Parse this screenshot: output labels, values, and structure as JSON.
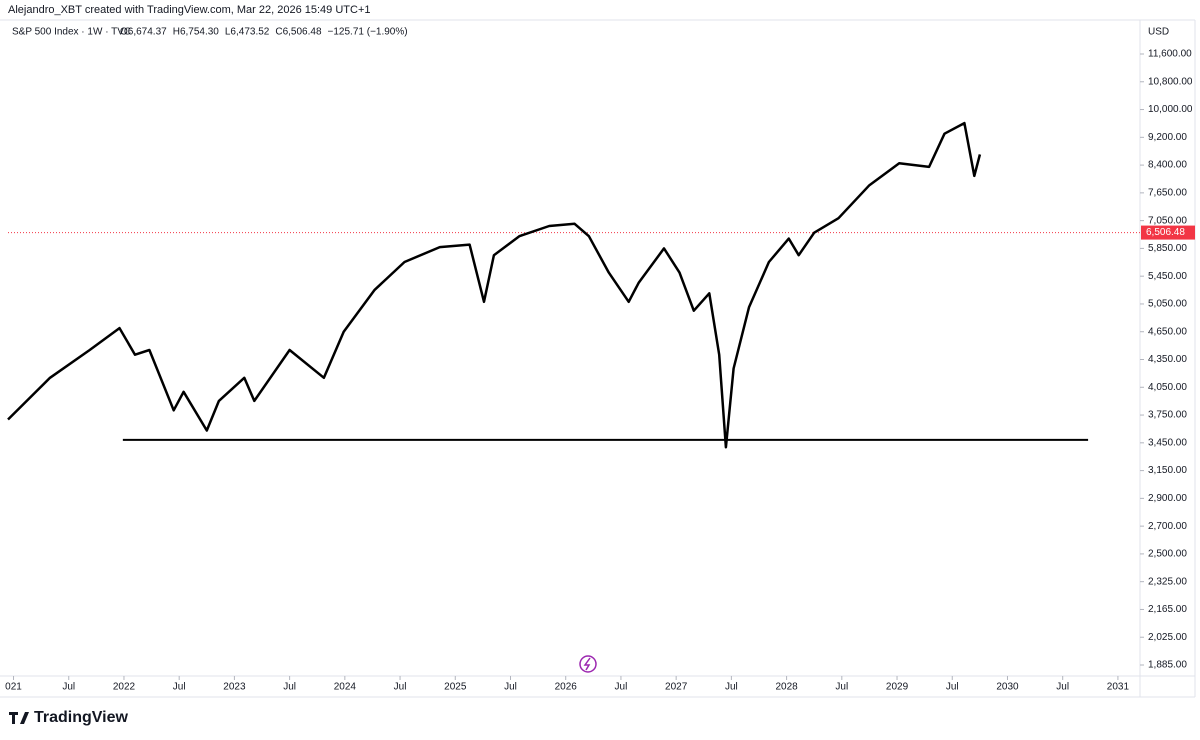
{
  "header": {
    "author_line": "Alejandro_XBT created with TradingView.com, Mar 22, 2026 15:49 UTC+1"
  },
  "chart_data": {
    "type": "line",
    "title": "S&P 500 Index · 1W · TVC",
    "ohlc": [
      "O6,674.37",
      "H6,754.30",
      "L6,473.52",
      "C6,506.48",
      "−125.71 (−1.90%)"
    ],
    "currency": "USD",
    "brand": "TradingView",
    "x": [
      2020.95,
      2021.33,
      2021.69,
      2021.96,
      2022.1,
      2022.23,
      2022.45,
      2022.54,
      2022.75,
      2022.86,
      2023.09,
      2023.18,
      2023.5,
      2023.81,
      2023.99,
      2024.27,
      2024.54,
      2024.86,
      2025.13,
      2025.26,
      2025.35,
      2025.58,
      2025.85,
      2026.08,
      2026.21,
      2026.39,
      2026.57,
      2026.66,
      2026.89,
      2027.03,
      2027.16,
      2027.3,
      2027.39,
      2027.45,
      2027.52,
      2027.66,
      2027.84,
      2028.02,
      2028.11,
      2028.25,
      2028.47,
      2028.75,
      2029.02,
      2029.29,
      2029.43,
      2029.61,
      2029.7,
      2029.75
    ],
    "series": [
      {
        "name": "S&P 500 Index",
        "color": "#000000",
        "values": [
          3700,
          4150,
          4450,
          4700,
          4400,
          4450,
          3800,
          4000,
          3580,
          3900,
          4150,
          3900,
          4450,
          4150,
          4650,
          5250,
          5650,
          5900,
          6000,
          5080,
          5750,
          6350,
          6800,
          6900,
          6350,
          5500,
          5080,
          5350,
          5850,
          5500,
          4950,
          5200,
          4400,
          3400,
          4250,
          5000,
          5650,
          6250,
          5750,
          6500,
          7100,
          7850,
          8450,
          8350,
          9300,
          9600,
          8100,
          8700
        ]
      }
    ],
    "support_line": {
      "value": 3480,
      "x": [
        2021.99,
        2030.73
      ]
    },
    "last_price": {
      "value": 6506.48,
      "label": "6,506.48",
      "color": "#f23645"
    },
    "xlim": [
      2020.95,
      2031.2
    ],
    "xticks": [
      {
        "value": 2021,
        "label": "021"
      },
      {
        "value": 2021.5,
        "label": "Jul"
      },
      2022,
      {
        "value": 2022.5,
        "label": "Jul"
      },
      2023,
      {
        "value": 2023.5,
        "label": "Jul"
      },
      2024,
      {
        "value": 2024.5,
        "label": "Jul"
      },
      2025,
      {
        "value": 2025.5,
        "label": "Jul"
      },
      2026,
      {
        "value": 2026.5,
        "label": "Jul"
      },
      2027,
      {
        "value": 2027.5,
        "label": "Jul"
      },
      2028,
      {
        "value": 2028.5,
        "label": "Jul"
      },
      2029,
      {
        "value": 2029.5,
        "label": "Jul"
      },
      2030,
      {
        "value": 2030.5,
        "label": "Jul"
      },
      2031
    ],
    "ylim": [
      1885,
      11600
    ],
    "yticks": [
      {
        "value": 11600,
        "label": "11,600.00"
      },
      {
        "value": 10800,
        "label": "10,800.00"
      },
      {
        "value": 10000,
        "label": "10,000.00"
      },
      {
        "value": 9200,
        "label": "9,200.00"
      },
      {
        "value": 8400,
        "label": "8,400.00"
      },
      {
        "value": 7650,
        "label": "7,650.00"
      },
      {
        "value": 7050,
        "label": "7,050.00"
      },
      {
        "value": 5850,
        "label": "5,850.00"
      },
      {
        "value": 5450,
        "label": "5,450.00"
      },
      {
        "value": 5050,
        "label": "5,050.00"
      },
      {
        "value": 4650,
        "label": "4,650.00"
      },
      {
        "value": 4350,
        "label": "4,350.00"
      },
      {
        "value": 4050,
        "label": "4,050.00"
      },
      {
        "value": 3750,
        "label": "3,750.00"
      },
      {
        "value": 3450,
        "label": "3,450.00"
      },
      {
        "value": 3150,
        "label": "3,150.00"
      },
      {
        "value": 2900,
        "label": "2,900.00"
      },
      {
        "value": 2700,
        "label": "2,700.00"
      },
      {
        "value": 2500,
        "label": "2,500.00"
      },
      {
        "value": 2325,
        "label": "2,325.00"
      },
      {
        "value": 2165,
        "label": "2,165.00"
      },
      {
        "value": 2025,
        "label": "2,025.00"
      },
      {
        "value": 1885,
        "label": "1,885.00"
      }
    ]
  }
}
